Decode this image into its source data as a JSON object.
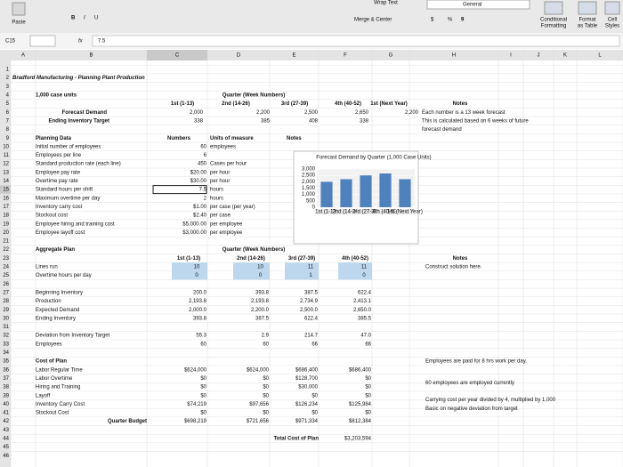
{
  "toolbar": {
    "paste": "Paste",
    "bold": "B",
    "italic": "I",
    "underline": "U",
    "wrap": "Wrap Text",
    "number_format": "General",
    "merge": "Merge & Center",
    "currency": "$",
    "percent": "%",
    "comma": "9",
    "conditional": [
      "Conditional",
      "Formatting"
    ],
    "format_table": [
      "Format",
      "as Table"
    ],
    "cell_styles": [
      "Cell",
      "Styles"
    ]
  },
  "formula_bar": {
    "cell": "C15",
    "fx": "fx",
    "value": "7.5"
  },
  "columns": [
    "A",
    "B",
    "C",
    "D",
    "E",
    "F",
    "G",
    "H",
    "I",
    "J",
    "K",
    "L"
  ],
  "rows": [
    1,
    2,
    3,
    4,
    5,
    6,
    7,
    8,
    9,
    10,
    11,
    12,
    13,
    14,
    15,
    16,
    17,
    18,
    19,
    20,
    21,
    22,
    23,
    24,
    25,
    26,
    27,
    28,
    29,
    30,
    31,
    32,
    33,
    34,
    35,
    36,
    37,
    38,
    39,
    40,
    41,
    42,
    43,
    44,
    45,
    46
  ],
  "sheet": {
    "title": "Bradford Manufacturing - Planning Plant Production",
    "units": "1,000 case units",
    "quarter_header": "Quarter (Week Numbers)",
    "quarters": [
      "1st (1-13)",
      "2nd (14-26)",
      "3rd (27-39)",
      "4th (40-52)",
      "1st (Next Year)"
    ],
    "notes_header": "Notes",
    "forecast": {
      "label": "Forecast Demand",
      "values": [
        "2,000",
        "2,200",
        "2,500",
        "2,650",
        "2,200"
      ],
      "note": "Each number is a 13 week forecast"
    },
    "target": {
      "label": "Ending Inventory Target",
      "values": [
        "338",
        "385",
        "408",
        "338"
      ],
      "notes": [
        "This is calculated based on 6 weeks of future",
        "forecast demand"
      ]
    },
    "planning": {
      "title": "Planning Data",
      "headers": [
        "Numbers",
        "Units of measure",
        "Notes"
      ],
      "items": [
        {
          "label": "Initial number of employees",
          "number": "60",
          "unit": "employees"
        },
        {
          "label": "Employees per line",
          "number": "6",
          "unit": ""
        },
        {
          "label": "Standard production rate (each line)",
          "number": "450",
          "unit": "Cases per hour"
        },
        {
          "label": "Employee pay rate",
          "number": "$20.00",
          "unit": "per hour"
        },
        {
          "label": "Overtime pay rate",
          "number": "$30.00",
          "unit": "per hour"
        },
        {
          "label": "Standard hours per shift",
          "number": "7.5",
          "unit": "hours"
        },
        {
          "label": "Maximum overtime per day",
          "number": "2",
          "unit": "hours"
        },
        {
          "label": "Inventory carry cost",
          "number": "$1.00",
          "unit": "per case (per year)"
        },
        {
          "label": "Stockout cost",
          "number": "$2.40",
          "unit": "per case"
        },
        {
          "label": "Employee hiring and training cost",
          "number": "$5,000.00",
          "unit": "per employee"
        },
        {
          "label": "Employee layoff cost",
          "number": "$3,000.00",
          "unit": "per employee"
        }
      ]
    },
    "aggregate": {
      "title": "Aggregate Plan",
      "quarter_header": "Quarter (Week Numbers)",
      "quarters": [
        "1st (1-13)",
        "2nd (14-26)",
        "3rd (27-39)",
        "4th (40-52)"
      ],
      "notes_header": "Notes",
      "lines": [
        {
          "label": "Lines run",
          "values": [
            "10",
            "10",
            "11",
            "11"
          ]
        },
        {
          "label": "Overtime hours per day",
          "values": [
            "0",
            "0",
            "1",
            "0"
          ]
        },
        {
          "label": "Beginning Inventory",
          "values": [
            "200.0",
            "393.8",
            "387.5",
            "622.4"
          ]
        },
        {
          "label": "Production",
          "values": [
            "2,193.8",
            "2,193.8",
            "2,734.9",
            "2,413.1"
          ]
        },
        {
          "label": "Expected Demand",
          "values": [
            "2,000.0",
            "2,200.0",
            "2,500.0",
            "2,650.0"
          ]
        },
        {
          "label": "Ending Inventory",
          "values": [
            "393.8",
            "387.5",
            "622.4",
            "385.5"
          ]
        },
        {
          "label": "Deviation from Inventory Target",
          "values": [
            "55.3",
            "2.9",
            "214.7",
            "47.0"
          ]
        },
        {
          "label": "Employees",
          "values": [
            "60",
            "60",
            "66",
            "66"
          ]
        },
        {
          "label": "Labor Regular Time",
          "values": [
            "$624,000",
            "$624,000",
            "$686,400",
            "$686,400"
          ]
        },
        {
          "label": "Labor Overtime",
          "values": [
            "$0",
            "$0",
            "$128,700",
            "$0"
          ]
        },
        {
          "label": "Hiring and Training",
          "values": [
            "$0",
            "$0",
            "$30,000",
            "$0"
          ]
        },
        {
          "label": "Layoff",
          "values": [
            "$0",
            "$0",
            "$0",
            "$0"
          ]
        },
        {
          "label": "Inventory Carry Cost",
          "values": [
            "$74,219",
            "$97,656",
            "$126,234",
            "$125,984"
          ]
        },
        {
          "label": "Stockout Cost",
          "values": [
            "$0",
            "$0",
            "$0",
            "$0"
          ]
        },
        {
          "label": "Quarter Budget",
          "values": [
            "$698,219",
            "$721,656",
            "$971,334",
            "$812,384"
          ]
        }
      ],
      "cost_header": "Cost of Plan",
      "notes": [
        "Construct solution here.",
        "Employees are paid for 8 hrs work per day.",
        "60 employees are employed currently",
        "Carrying cost per year divided by 4, multiplied by 1,000",
        "Basic on negative deviation from target"
      ],
      "total_label": "Total Cost of Plan",
      "total": "$3,203,594"
    }
  },
  "chart_data": {
    "type": "bar",
    "title": "Forecast Demand by Quarter (1,000 Case Units)",
    "categories": [
      "1st (1-13)",
      "2nd (14-26)",
      "3rd (27-39)",
      "4th (40-52)",
      "1st (Next Year)"
    ],
    "values": [
      2000,
      2200,
      2500,
      2650,
      2200
    ],
    "color": "#4f81bd",
    "ylim": [
      0,
      3000
    ],
    "yticks": [
      0,
      500,
      {
        "value": 1000,
        "label": "1,000"
      },
      {
        "value": 1500,
        "label": "1,500"
      },
      {
        "value": 2000,
        "label": "2,000"
      },
      {
        "value": 2500,
        "label": "2,500"
      },
      {
        "value": 3000,
        "label": "3,000"
      }
    ],
    "grid": true
  }
}
